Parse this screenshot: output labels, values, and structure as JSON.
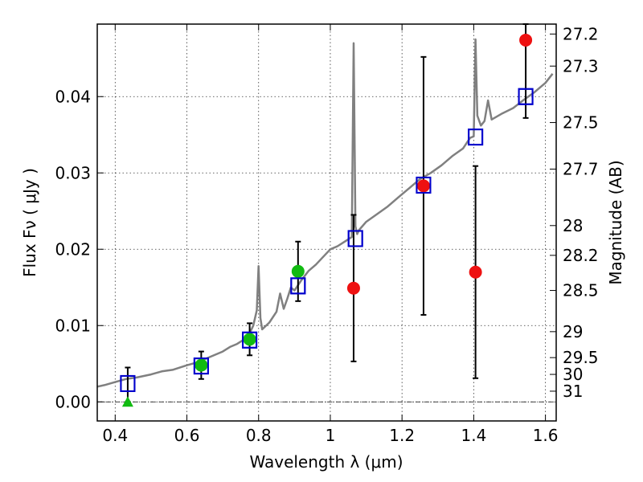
{
  "chart_data": {
    "type": "scatter",
    "title": "",
    "xlabel": "Wavelength  λ (μm)",
    "ylabel": "Flux  Fν  ( μJy )",
    "ylabel_right": "Magnitude (AB)",
    "xlim": [
      0.35,
      1.63
    ],
    "ylim": [
      -0.0025,
      0.0495
    ],
    "x_ticks": [
      0.4,
      0.6,
      0.8,
      1.0,
      1.2,
      1.4,
      1.6
    ],
    "x_tick_labels": [
      "0.4",
      "0.6",
      "0.8",
      "1",
      "1.2",
      "1.4",
      "1.6"
    ],
    "y_ticks": [
      0.0,
      0.01,
      0.02,
      0.03,
      0.04
    ],
    "y_tick_labels": [
      "0.00",
      "0.01",
      "0.02",
      "0.03",
      "0.04"
    ],
    "right_ticks": [
      {
        "label": "27.2",
        "flux": 0.0482
      },
      {
        "label": "27.3",
        "flux": 0.044
      },
      {
        "label": "27.5",
        "flux": 0.0366
      },
      {
        "label": "27.7",
        "flux": 0.0305
      },
      {
        "label": "28",
        "flux": 0.0231
      },
      {
        "label": "28.2",
        "flux": 0.0192
      },
      {
        "label": "28.5",
        "flux": 0.0146
      },
      {
        "label": "29",
        "flux": 0.0092
      },
      {
        "label": "29.5",
        "flux": 0.0058
      },
      {
        "label": "30",
        "flux": 0.0036
      },
      {
        "label": "31",
        "flux": 0.0014
      }
    ],
    "grid": true,
    "zero_line": 0.0,
    "colors": {
      "model": "#808080",
      "model_photometry": "#0000cc",
      "green_points": "#11bb11",
      "red_points": "#ee1111",
      "errorbar": "#000000"
    },
    "series": [
      {
        "name": "model spectrum",
        "kind": "line",
        "x": [
          0.35,
          0.37,
          0.4,
          0.43,
          0.46,
          0.5,
          0.53,
          0.56,
          0.6,
          0.63,
          0.66,
          0.7,
          0.72,
          0.74,
          0.76,
          0.775,
          0.785,
          0.795,
          0.8,
          0.805,
          0.81,
          0.83,
          0.85,
          0.86,
          0.87,
          0.88,
          0.89,
          0.9,
          0.92,
          0.94,
          0.96,
          0.98,
          1.0,
          1.02,
          1.04,
          1.06,
          1.065,
          1.07,
          1.075,
          1.08,
          1.1,
          1.13,
          1.16,
          1.19,
          1.22,
          1.25,
          1.28,
          1.31,
          1.34,
          1.37,
          1.39,
          1.4,
          1.405,
          1.41,
          1.42,
          1.43,
          1.44,
          1.45,
          1.48,
          1.51,
          1.54,
          1.57,
          1.6,
          1.62
        ],
        "y": [
          0.002,
          0.0022,
          0.0026,
          0.003,
          0.0032,
          0.0036,
          0.004,
          0.0042,
          0.0048,
          0.0052,
          0.0058,
          0.0066,
          0.0072,
          0.0076,
          0.0082,
          0.009,
          0.01,
          0.012,
          0.0178,
          0.011,
          0.0095,
          0.0104,
          0.0118,
          0.0142,
          0.0122,
          0.0135,
          0.015,
          0.0146,
          0.016,
          0.0172,
          0.018,
          0.019,
          0.02,
          0.0204,
          0.021,
          0.0216,
          0.047,
          0.023,
          0.022,
          0.0225,
          0.0236,
          0.0246,
          0.0256,
          0.0268,
          0.028,
          0.0292,
          0.03,
          0.031,
          0.0322,
          0.0332,
          0.0346,
          0.0348,
          0.0475,
          0.0375,
          0.0362,
          0.0368,
          0.0395,
          0.037,
          0.0378,
          0.0385,
          0.0396,
          0.0406,
          0.0418,
          0.043
        ]
      },
      {
        "name": "model photometry",
        "kind": "open-square",
        "x": [
          0.435,
          0.64,
          0.775,
          0.91,
          1.07,
          1.26,
          1.405,
          1.545
        ],
        "y": [
          0.0024,
          0.0047,
          0.0081,
          0.0152,
          0.0214,
          0.0284,
          0.0347,
          0.04
        ]
      },
      {
        "name": "detections",
        "kind": "filled-circle",
        "x": [
          0.64,
          0.775,
          0.91
        ],
        "y": [
          0.0048,
          0.0082,
          0.0171
        ],
        "yerr": [
          0.0018,
          0.0021,
          0.0039
        ]
      },
      {
        "name": "upper limit",
        "kind": "filled-triangle",
        "x": [
          0.435
        ],
        "y": [
          0.0
        ],
        "yerr_upper": [
          0.0045
        ]
      },
      {
        "name": "low significance",
        "kind": "filled-circle",
        "x": [
          1.065,
          1.26,
          1.405,
          1.545
        ],
        "y": [
          0.0149,
          0.0283,
          0.017,
          0.0474
        ],
        "yerr": [
          0.0096,
          0.0169,
          0.0139,
          0.0102
        ]
      }
    ]
  }
}
